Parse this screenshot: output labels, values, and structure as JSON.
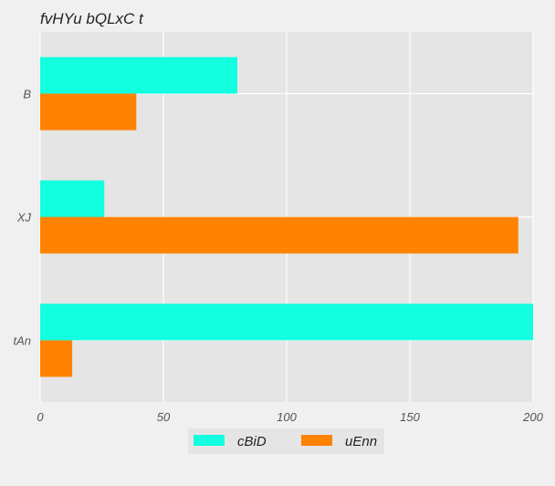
{
  "chart_data": {
    "type": "bar",
    "orientation": "horizontal",
    "title": "fvHYu bQLxC t",
    "xlabel": "",
    "ylabel": "",
    "categories": [
      "B",
      "XJ",
      "tAn"
    ],
    "series": [
      {
        "name": "cBiD",
        "color": "#12ffe0",
        "values": [
          80,
          26,
          200
        ]
      },
      {
        "name": "uEnn",
        "color": "#ff8200",
        "values": [
          39,
          194,
          13
        ]
      }
    ],
    "xlim": [
      0,
      200
    ],
    "xticks": [
      0,
      50,
      100,
      150,
      200
    ],
    "grid": true,
    "legend_position": "bottom-center"
  }
}
